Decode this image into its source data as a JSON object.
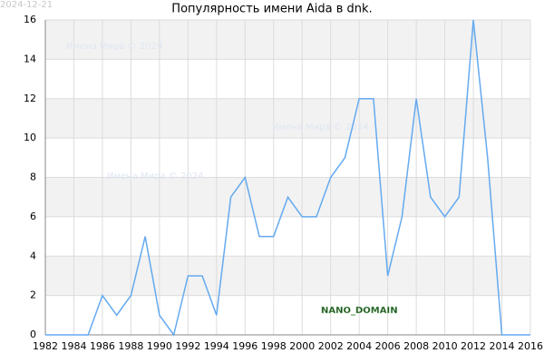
{
  "chart_data": {
    "type": "line",
    "title": "Популярность имени Aida в dnk.",
    "date_stamp": "2024-12-21",
    "watermark": "Имена Мира © 2024",
    "brand": "NANO_DOMAIN",
    "x": [
      1982,
      1983,
      1984,
      1985,
      1986,
      1987,
      1988,
      1989,
      1990,
      1991,
      1992,
      1993,
      1994,
      1995,
      1996,
      1997,
      1998,
      1999,
      2000,
      2001,
      2002,
      2003,
      2004,
      2005,
      2006,
      2007,
      2008,
      2009,
      2010,
      2011,
      2012,
      2013,
      2014,
      2015,
      2016
    ],
    "values": [
      0,
      0,
      0,
      0,
      2,
      1,
      2,
      5,
      1,
      0,
      3,
      3,
      1,
      7,
      8,
      5,
      5,
      7,
      6,
      6,
      8,
      9,
      12,
      12,
      3,
      6,
      12,
      7,
      6,
      7,
      16,
      9,
      0,
      0,
      0
    ],
    "color": "#64aaf0",
    "xlim": [
      1982,
      2016
    ],
    "xticks": [
      1982,
      1984,
      1986,
      1988,
      1990,
      1992,
      1994,
      1996,
      1998,
      2000,
      2002,
      2004,
      2006,
      2008,
      2010,
      2012,
      2014,
      2016
    ],
    "ylim": [
      0,
      16
    ],
    "yticks": [
      0,
      2,
      4,
      6,
      8,
      10,
      12,
      14,
      16
    ],
    "grid": true
  }
}
